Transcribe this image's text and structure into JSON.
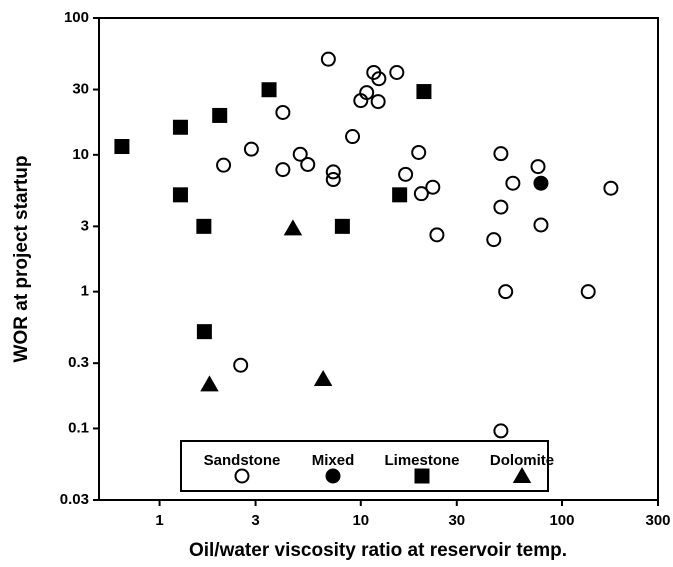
{
  "chart_data": {
    "type": "scatter",
    "x_label": "Oil/water viscosity ratio at reservoir temp.",
    "y_label": "WOR at project startup",
    "xscale": "log",
    "yscale": "log",
    "xlim": [
      0.5,
      300
    ],
    "ylim": [
      0.03,
      100
    ],
    "xticks": [
      1,
      3,
      10,
      30,
      100,
      300
    ],
    "yticks": [
      0.03,
      0.1,
      0.3,
      1,
      3,
      10,
      30,
      100
    ],
    "legend": "bottom",
    "series": [
      {
        "name": "Sandstone",
        "marker": "circle",
        "filled": false,
        "color": "#000000",
        "x": [
          6.9,
          11.6,
          12.3,
          15.1,
          10.7,
          10,
          12.2,
          4.1,
          9.1,
          2.86,
          2.08,
          4.1,
          5.0,
          5.45,
          7.3,
          7.3,
          19.4,
          16.7,
          20,
          22.8,
          23.9,
          49.7,
          76,
          57,
          49.7,
          45.8,
          78.6,
          52.5,
          135,
          175,
          2.53,
          49.7
        ],
        "values": [
          50,
          40,
          36,
          40,
          28.5,
          24.9,
          24.5,
          20.4,
          13.6,
          11,
          8.4,
          7.8,
          10.1,
          8.5,
          7.5,
          6.6,
          10.4,
          7.2,
          5.2,
          5.8,
          2.6,
          10.2,
          8.2,
          6.2,
          4.15,
          2.4,
          3.07,
          1.0,
          1.0,
          5.7,
          0.29,
          0.096
        ]
      },
      {
        "name": "Mixed",
        "marker": "circle",
        "filled": true,
        "color": "#000000",
        "x": [
          78.6
        ],
        "values": [
          6.2
        ]
      },
      {
        "name": "Limestone",
        "marker": "square",
        "filled": true,
        "color": "#000000",
        "x": [
          0.65,
          1.27,
          1.99,
          3.5,
          20.6,
          1.27,
          1.66,
          8.1,
          15.6,
          1.67
        ],
        "values": [
          11.5,
          15.9,
          19.4,
          29.9,
          29,
          5.1,
          3.0,
          3.0,
          5.1,
          0.51
        ]
      },
      {
        "name": "Dolomite",
        "marker": "triangle",
        "filled": true,
        "color": "#000000",
        "x": [
          4.6,
          1.77,
          6.5
        ],
        "values": [
          2.9,
          0.21,
          0.23
        ]
      }
    ]
  }
}
